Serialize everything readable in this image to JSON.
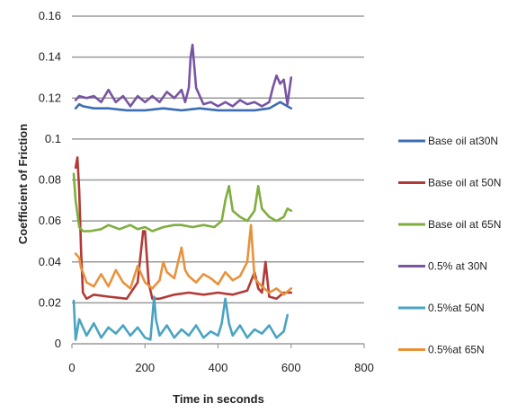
{
  "chart_data": {
    "type": "line",
    "title": "",
    "xlabel": "Time in seconds",
    "ylabel": "Coefficient of Friction",
    "xlim": [
      0,
      800
    ],
    "ylim": [
      0,
      0.16
    ],
    "xticks": [
      0,
      200,
      400,
      600,
      800
    ],
    "yticks": [
      0,
      0.02,
      0.04,
      0.06,
      0.08,
      0.1,
      0.12,
      0.14,
      0.16
    ],
    "ytick_labels": [
      "0",
      "0.02",
      "0.04",
      "0.06",
      "0.08",
      "0.1",
      "0.12",
      "0.14",
      "0.16"
    ],
    "grid": "horizontal",
    "legend_position": "right",
    "series": [
      {
        "name": "Base oil at30N",
        "color": "#3c6db4",
        "x": [
          10,
          20,
          30,
          60,
          100,
          150,
          200,
          250,
          300,
          350,
          400,
          450,
          500,
          540,
          570,
          590,
          600
        ],
        "y": [
          0.115,
          0.117,
          0.116,
          0.115,
          0.115,
          0.114,
          0.114,
          0.115,
          0.114,
          0.115,
          0.114,
          0.114,
          0.114,
          0.115,
          0.118,
          0.116,
          0.115
        ]
      },
      {
        "name": "Base oil at 50N",
        "color": "#b33a36",
        "x": [
          10,
          15,
          20,
          25,
          30,
          40,
          60,
          100,
          150,
          180,
          195,
          200,
          210,
          220,
          240,
          280,
          320,
          360,
          400,
          440,
          480,
          500,
          510,
          520,
          530,
          540,
          560,
          580,
          600
        ],
        "y": [
          0.086,
          0.091,
          0.075,
          0.045,
          0.025,
          0.022,
          0.024,
          0.023,
          0.022,
          0.03,
          0.055,
          0.055,
          0.03,
          0.022,
          0.022,
          0.024,
          0.025,
          0.024,
          0.025,
          0.024,
          0.026,
          0.035,
          0.027,
          0.025,
          0.04,
          0.023,
          0.022,
          0.025,
          0.025
        ]
      },
      {
        "name": "Base oil at 65N",
        "color": "#7fae3e",
        "x": [
          5,
          10,
          20,
          30,
          50,
          80,
          100,
          130,
          160,
          180,
          200,
          220,
          250,
          280,
          300,
          330,
          360,
          390,
          410,
          420,
          430,
          440,
          460,
          480,
          500,
          510,
          520,
          540,
          560,
          580,
          590,
          600
        ],
        "y": [
          0.083,
          0.07,
          0.057,
          0.055,
          0.055,
          0.056,
          0.058,
          0.056,
          0.058,
          0.056,
          0.057,
          0.055,
          0.057,
          0.058,
          0.058,
          0.057,
          0.058,
          0.057,
          0.06,
          0.07,
          0.077,
          0.065,
          0.062,
          0.06,
          0.065,
          0.077,
          0.066,
          0.062,
          0.06,
          0.062,
          0.066,
          0.065
        ]
      },
      {
        "name": "0.5% at 30N",
        "color": "#7855a3",
        "x": [
          10,
          20,
          40,
          60,
          80,
          100,
          120,
          140,
          160,
          180,
          200,
          220,
          240,
          260,
          280,
          300,
          310,
          320,
          325,
          330,
          340,
          360,
          380,
          400,
          420,
          440,
          460,
          480,
          500,
          520,
          540,
          550,
          560,
          570,
          580,
          590,
          600
        ],
        "y": [
          0.119,
          0.121,
          0.12,
          0.121,
          0.118,
          0.124,
          0.118,
          0.121,
          0.116,
          0.121,
          0.118,
          0.121,
          0.118,
          0.123,
          0.12,
          0.124,
          0.118,
          0.125,
          0.14,
          0.146,
          0.125,
          0.117,
          0.118,
          0.116,
          0.118,
          0.116,
          0.119,
          0.117,
          0.118,
          0.116,
          0.118,
          0.125,
          0.131,
          0.127,
          0.129,
          0.117,
          0.13
        ]
      },
      {
        "name": "0.5%at 50N",
        "color": "#4aa3c2",
        "x": [
          5,
          10,
          20,
          40,
          60,
          80,
          100,
          120,
          140,
          160,
          180,
          200,
          215,
          225,
          230,
          240,
          260,
          280,
          300,
          320,
          340,
          360,
          380,
          400,
          410,
          420,
          430,
          440,
          460,
          480,
          500,
          520,
          540,
          560,
          580,
          590
        ],
        "y": [
          0.021,
          0.002,
          0.012,
          0.004,
          0.01,
          0.003,
          0.008,
          0.005,
          0.009,
          0.004,
          0.008,
          0.003,
          0.002,
          0.023,
          0.012,
          0.004,
          0.009,
          0.003,
          0.007,
          0.004,
          0.009,
          0.003,
          0.006,
          0.004,
          0.01,
          0.022,
          0.01,
          0.004,
          0.009,
          0.003,
          0.007,
          0.005,
          0.009,
          0.003,
          0.006,
          0.014
        ]
      },
      {
        "name": "0.5%at 65N",
        "color": "#e8923b",
        "x": [
          10,
          20,
          25,
          30,
          40,
          60,
          80,
          100,
          120,
          140,
          160,
          180,
          200,
          220,
          240,
          250,
          260,
          280,
          300,
          310,
          320,
          340,
          360,
          380,
          400,
          420,
          440,
          460,
          480,
          490,
          500,
          510,
          520,
          540,
          560,
          580,
          600
        ],
        "y": [
          0.044,
          0.042,
          0.037,
          0.035,
          0.03,
          0.028,
          0.034,
          0.028,
          0.036,
          0.03,
          0.027,
          0.038,
          0.03,
          0.027,
          0.031,
          0.04,
          0.035,
          0.032,
          0.047,
          0.036,
          0.033,
          0.03,
          0.034,
          0.032,
          0.029,
          0.035,
          0.031,
          0.033,
          0.04,
          0.058,
          0.032,
          0.03,
          0.028,
          0.025,
          0.027,
          0.024,
          0.027
        ]
      }
    ]
  }
}
